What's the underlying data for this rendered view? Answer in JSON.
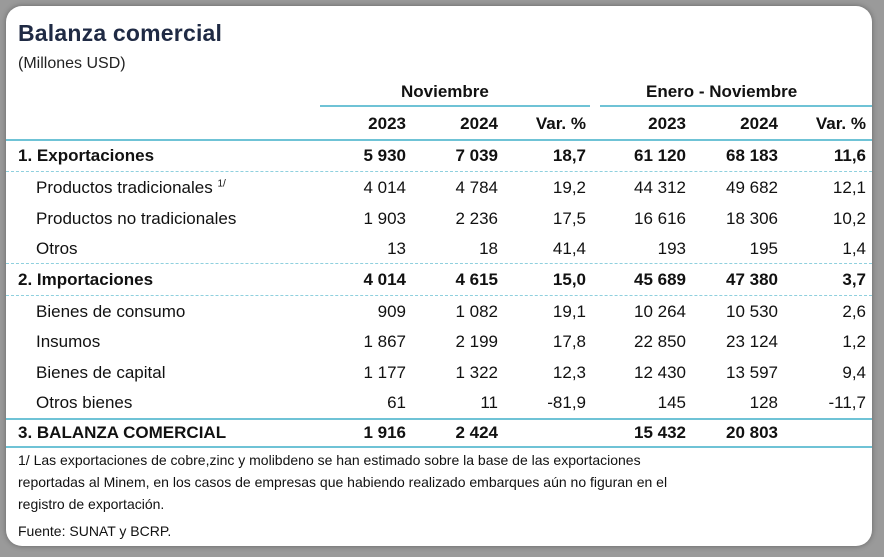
{
  "title": "Balanza comercial",
  "subtitle": "(Millones USD)",
  "headers": {
    "group1": "Noviembre",
    "group2": "Enero - Noviembre",
    "cols": [
      "2023",
      "2024",
      "Var. %",
      "2023",
      "2024",
      "Var. %"
    ]
  },
  "rows": [
    {
      "label": "1. Exportaciones",
      "sup": "",
      "values": [
        "5 930",
        "7 039",
        "18,7",
        "61 120",
        "68 183",
        "11,6"
      ]
    },
    {
      "label": "Productos tradicionales",
      "sup": "1/",
      "values": [
        "4 014",
        "4 784",
        "19,2",
        "44 312",
        "49 682",
        "12,1"
      ]
    },
    {
      "label": "Productos no tradicionales",
      "sup": "",
      "values": [
        "1 903",
        "2 236",
        "17,5",
        "16 616",
        "18 306",
        "10,2"
      ]
    },
    {
      "label": "Otros",
      "sup": "",
      "values": [
        "13",
        "18",
        "41,4",
        "193",
        "195",
        "1,4"
      ]
    },
    {
      "label": "2. Importaciones",
      "sup": "",
      "values": [
        "4 014",
        "4 615",
        "15,0",
        "45 689",
        "47 380",
        "3,7"
      ]
    },
    {
      "label": "Bienes de consumo",
      "sup": "",
      "values": [
        "909",
        "1 082",
        "19,1",
        "10 264",
        "10 530",
        "2,6"
      ]
    },
    {
      "label": "Insumos",
      "sup": "",
      "values": [
        "1 867",
        "2 199",
        "17,8",
        "22 850",
        "23 124",
        "1,2"
      ]
    },
    {
      "label": "Bienes de capital",
      "sup": "",
      "values": [
        "1 177",
        "1 322",
        "12,3",
        "12 430",
        "13 597",
        "9,4"
      ]
    },
    {
      "label": "Otros bienes",
      "sup": "",
      "values": [
        "61",
        "11",
        "-81,9",
        "145",
        "128",
        "-11,7"
      ]
    },
    {
      "label": "3. BALANZA COMERCIAL",
      "sup": "",
      "values": [
        "1 916",
        "2 424",
        "",
        "15 432",
        "20 803",
        ""
      ]
    }
  ],
  "footnote": [
    "1/ Las exportaciones de cobre,zinc y molibdeno se han estimado sobre la base de las exportaciones",
    "reportadas al Minem, en los casos de empresas que habiendo realizado embarques aún no figuran en el",
    "registro de exportación."
  ],
  "source": "Fuente: SUNAT y BCRP."
}
